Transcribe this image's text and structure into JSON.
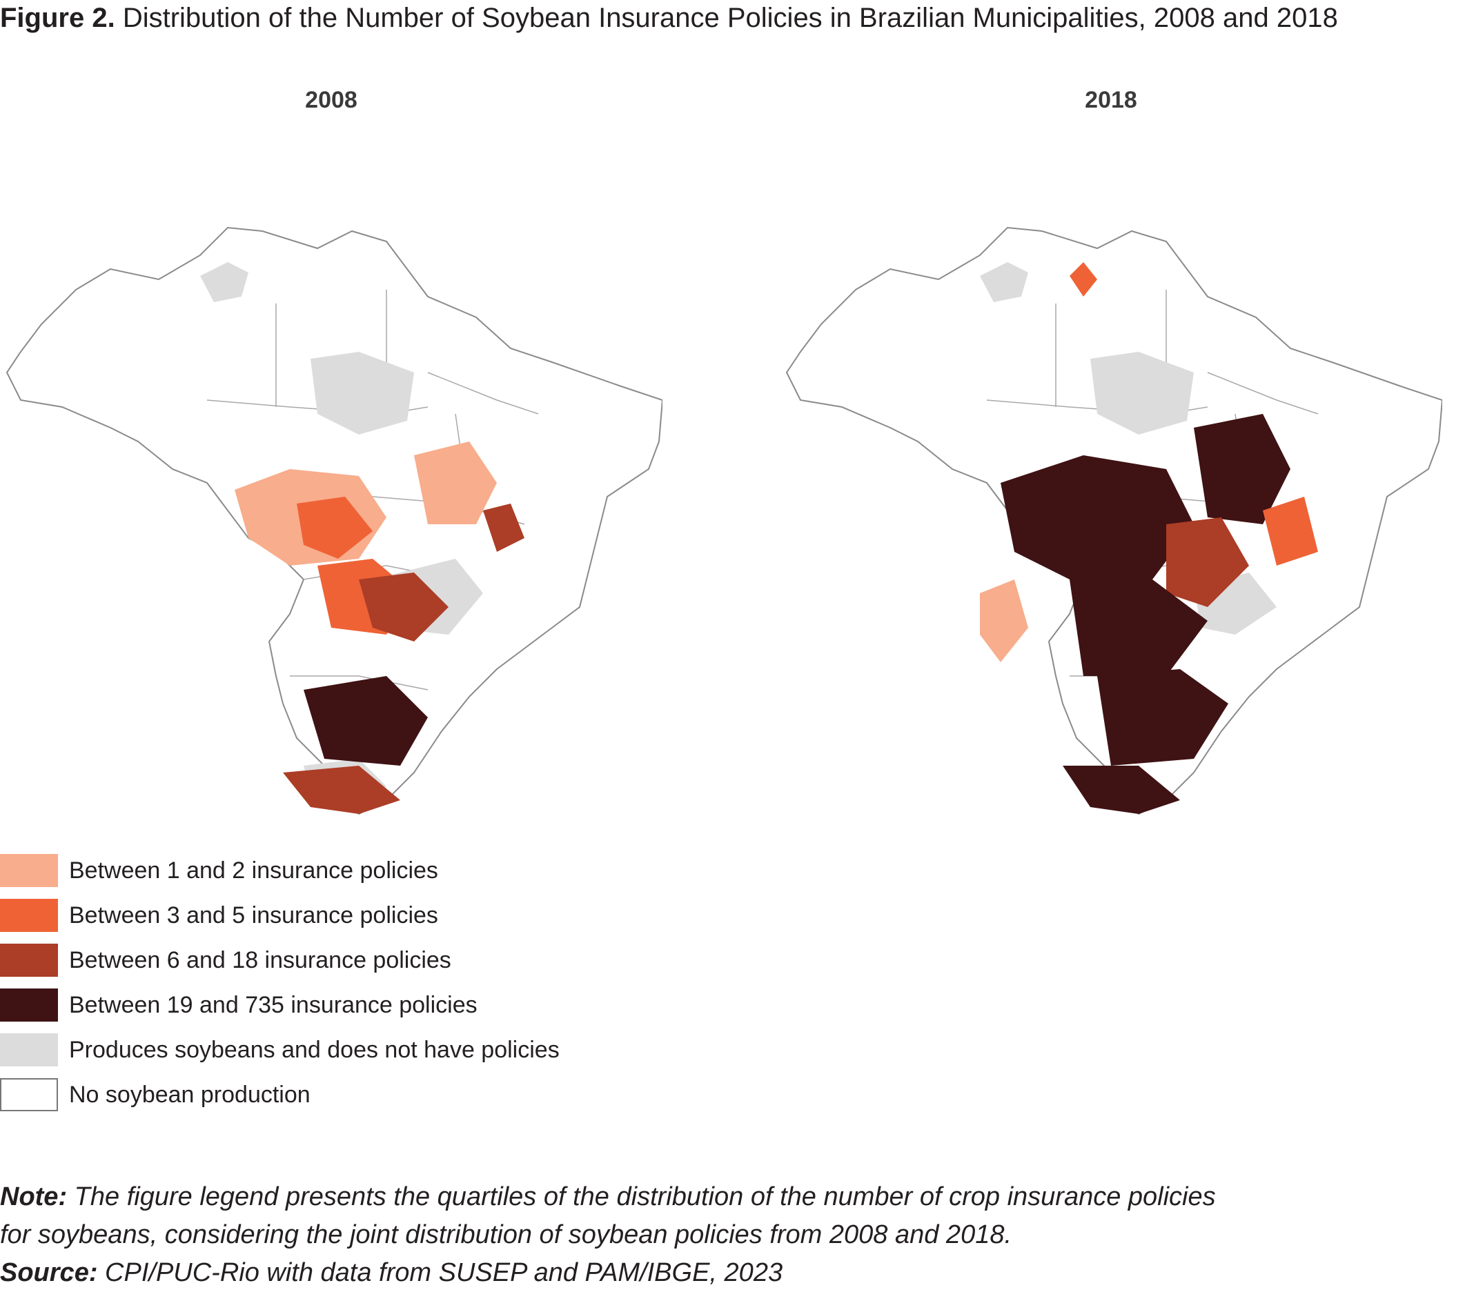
{
  "figure": {
    "title_lead": "Figure 2.",
    "title_rest": " Distribution of the Number of Soybean Insurance Policies in Brazilian Municipalities, 2008 and 2018"
  },
  "maps": [
    {
      "year": "2008"
    },
    {
      "year": "2018"
    }
  ],
  "legend": {
    "items": [
      {
        "label": "Between 1 and 2 insurance policies",
        "color": "#f8ad8c"
      },
      {
        "label": "Between 3 and 5 insurance policies",
        "color": "#ef6236"
      },
      {
        "label": "Between 6 and 18 insurance policies",
        "color": "#ac3d26"
      },
      {
        "label": "Between 19 and 735 insurance policies",
        "color": "#3f1213"
      },
      {
        "label": "Produces soybeans and does not have policies",
        "color": "#dcdcdc"
      },
      {
        "label": "No soybean production",
        "color": "#ffffff"
      }
    ]
  },
  "notes": {
    "note_label": "Note:",
    "note_line1": " The figure legend presents the quartiles of the distribution of the number of crop insurance policies",
    "note_line2": "for soybeans, considering the joint distribution of soybean policies from 2008 and 2018.",
    "source_label": "Source:",
    "source_text": " CPI/PUC-Rio with data from SUSEP and PAM/IBGE, 2023"
  }
}
